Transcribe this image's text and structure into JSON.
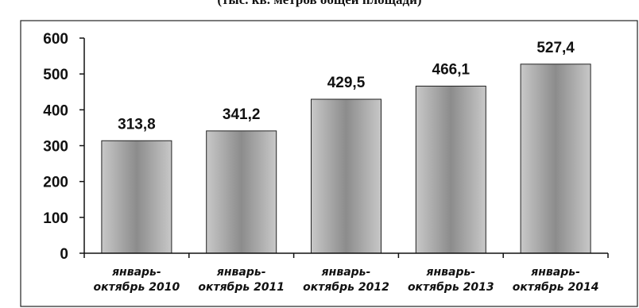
{
  "page": {
    "title": "(тыс. кв. метров общей площади)"
  },
  "chart_data": {
    "type": "bar",
    "title": "(тыс. кв. метров общей площади)",
    "categories": [
      [
        "январь-",
        "октябрь 2010"
      ],
      [
        "январь-",
        "октябрь 2011"
      ],
      [
        "январь-",
        "октябрь 2012"
      ],
      [
        "январь-",
        "октябрь 2013"
      ],
      [
        "январь-",
        "октябрь 2014"
      ]
    ],
    "values": [
      313.8,
      341.2,
      429.5,
      466.1,
      527.4
    ],
    "data_labels": [
      "313,8",
      "341,2",
      "429,5",
      "466,1",
      "527,4"
    ],
    "yticks": [
      "0",
      "100",
      "200",
      "300",
      "400",
      "500",
      "600"
    ],
    "ylim": [
      0,
      600
    ],
    "xlabel": "",
    "ylabel": "",
    "grid": false,
    "legend": "none",
    "colors": {
      "bar_edge": "#c8c8c8",
      "bar_mid": "#8c8c8c",
      "bar_outline": "#222222",
      "axis": "#111111",
      "frame": "#222222"
    }
  }
}
